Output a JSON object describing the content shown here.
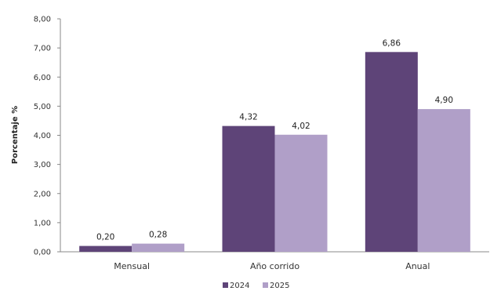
{
  "chart_data": {
    "type": "bar",
    "title": "",
    "xlabel": "",
    "ylabel": "Porcentaje %",
    "categories": [
      "Mensual",
      "Año corrido",
      "Anual"
    ],
    "series": [
      {
        "name": "2024",
        "color": "#5e4478",
        "values": [
          0.2,
          4.32,
          6.86
        ],
        "labels": [
          "0,20",
          "4,32",
          "6,86"
        ]
      },
      {
        "name": "2025",
        "color": "#b09fc8",
        "values": [
          0.28,
          4.02,
          4.9
        ],
        "labels": [
          "0,28",
          "4,02",
          "4,90"
        ]
      }
    ],
    "ylim": [
      0,
      8
    ],
    "yticks": [
      0,
      1,
      2,
      3,
      4,
      5,
      6,
      7,
      8
    ],
    "ytick_labels": [
      "0,00",
      "1,00",
      "2,00",
      "3,00",
      "4,00",
      "5,00",
      "6,00",
      "7,00",
      "8,00"
    ],
    "grid": false,
    "legend_position": "bottom-center"
  }
}
